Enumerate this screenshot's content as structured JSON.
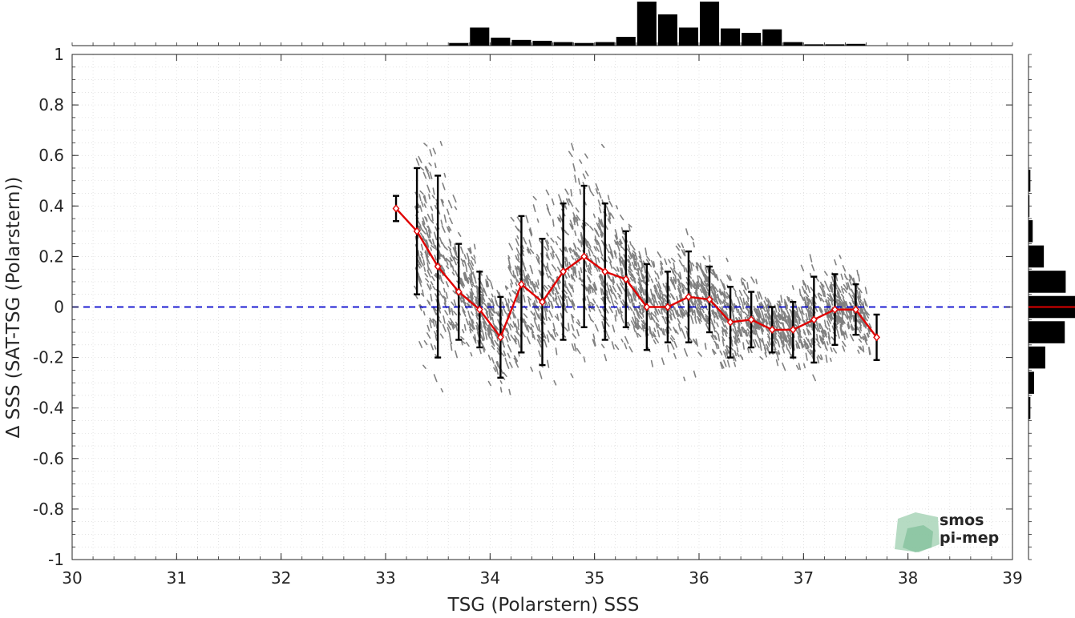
{
  "chart_data": {
    "type": "scatter",
    "xlabel": "TSG (Polarstern) SSS",
    "ylabel": "Δ SSS (SAT-TSG (Polarstern))",
    "xlim": [
      30,
      39
    ],
    "ylim": [
      -1,
      1
    ],
    "x_ticks": [
      "30",
      "31",
      "32",
      "33",
      "34",
      "35",
      "36",
      "37",
      "38",
      "39"
    ],
    "y_ticks": [
      "1",
      "0.8",
      "0.6",
      "0.4",
      "0.2",
      "0",
      "-0.2",
      "-0.4",
      "-0.6",
      "-0.8",
      "-1"
    ],
    "grid": true,
    "reference_line": {
      "y": 0,
      "style": "dashed",
      "color": "#0000cc"
    },
    "binned_mean": {
      "color": "#e00000",
      "x": [
        33.1,
        33.3,
        33.5,
        33.7,
        33.9,
        34.1,
        34.3,
        34.5,
        34.7,
        34.9,
        35.1,
        35.3,
        35.5,
        35.7,
        35.9,
        36.1,
        36.3,
        36.5,
        36.7,
        36.9,
        37.1,
        37.3,
        37.5,
        37.7
      ],
      "mean": [
        0.39,
        0.3,
        0.16,
        0.06,
        -0.01,
        -0.12,
        0.09,
        0.02,
        0.14,
        0.2,
        0.14,
        0.11,
        0.0,
        0.0,
        0.04,
        0.03,
        -0.06,
        -0.05,
        -0.09,
        -0.09,
        -0.05,
        -0.01,
        -0.01,
        -0.12
      ],
      "std": [
        0.05,
        0.25,
        0.36,
        0.19,
        0.15,
        0.16,
        0.27,
        0.25,
        0.27,
        0.28,
        0.27,
        0.19,
        0.17,
        0.14,
        0.18,
        0.13,
        0.14,
        0.11,
        0.09,
        0.11,
        0.17,
        0.14,
        0.1,
        0.09
      ]
    },
    "scatter_color": "#808080",
    "top_histogram": {
      "bin_width": 0.2,
      "x": [
        33.7,
        33.9,
        34.1,
        34.3,
        34.5,
        34.7,
        34.9,
        35.1,
        35.3,
        35.5,
        35.7,
        35.9,
        36.1,
        36.3,
        36.5,
        36.7,
        36.9,
        37.1,
        37.3,
        37.5
      ],
      "counts": [
        0.06,
        0.41,
        0.18,
        0.13,
        0.11,
        0.08,
        0.06,
        0.08,
        0.2,
        1.0,
        0.71,
        0.41,
        1.0,
        0.39,
        0.29,
        0.37,
        0.08,
        0.03,
        0.03,
        0.04
      ]
    },
    "right_histogram": {
      "bin_width": 0.1,
      "y": [
        0.5,
        0.4,
        0.3,
        0.2,
        0.1,
        0.0,
        -0.1,
        -0.2,
        -0.3,
        -0.4
      ],
      "counts": [
        0.04,
        0.02,
        0.09,
        0.33,
        0.8,
        1.0,
        0.78,
        0.36,
        0.12,
        0.04
      ],
      "mean_line_color": "#e00000"
    }
  },
  "logo": {
    "line1": "smos",
    "line2": "pi-mep"
  }
}
